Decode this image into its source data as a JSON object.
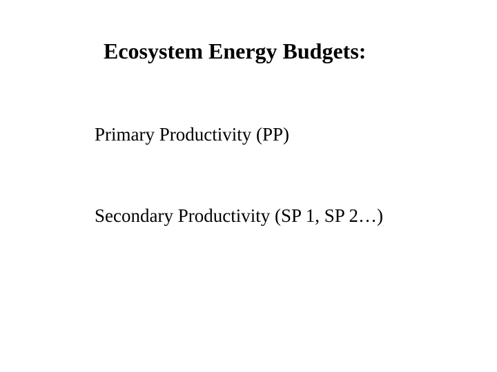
{
  "slide": {
    "title": "Ecosystem Energy Budgets:",
    "line1": "Primary Productivity (PP)",
    "line2": "Secondary Productivity (SP 1, SP 2…)",
    "background_color": "#ffffff",
    "text_color": "#000000",
    "title_fontsize": 32,
    "body_fontsize": 27,
    "font_family": "Times New Roman"
  }
}
